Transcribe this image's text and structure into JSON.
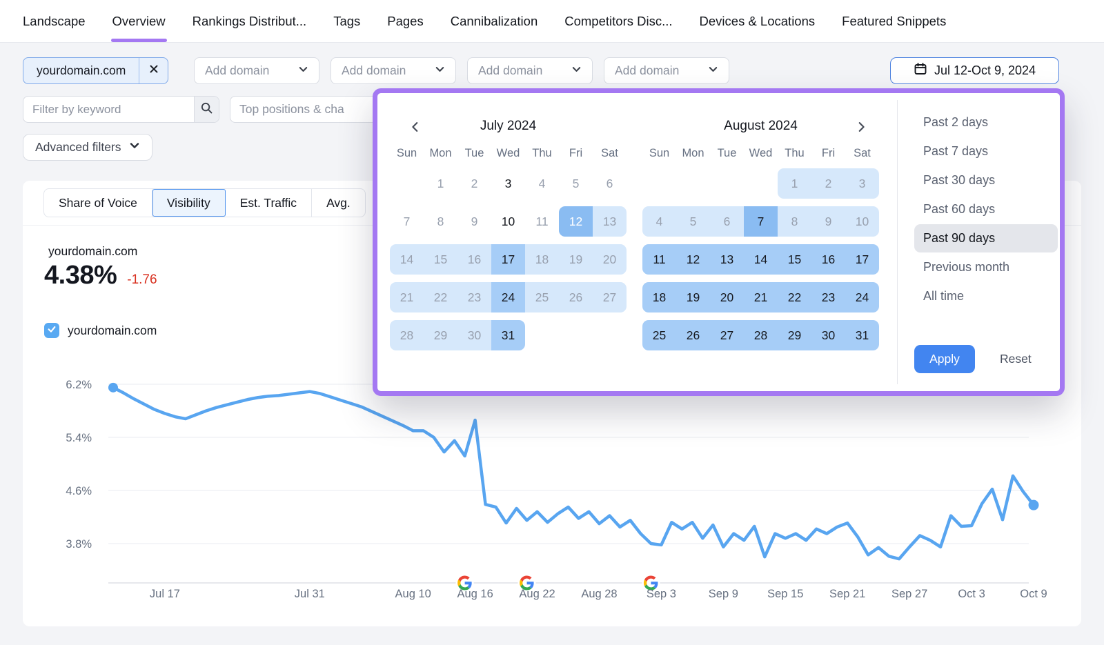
{
  "nav": {
    "items": [
      "Landscape",
      "Overview",
      "Rankings Distribut...",
      "Tags",
      "Pages",
      "Cannibalization",
      "Competitors Disc...",
      "Devices & Locations",
      "Featured Snippets"
    ],
    "active_item": "Overview"
  },
  "toolbar": {
    "domain_chip": {
      "label": "yourdomain.com"
    },
    "add_domain_label": "Add domain",
    "date_range_label": "Jul 12-Oct 9, 2024",
    "keyword_filter_placeholder": "Filter by keyword",
    "positions_filter_label": "Top positions & cha",
    "advanced_filters_label": "Advanced filters"
  },
  "metric_tabs": {
    "items": [
      "Share of Voice",
      "Visibility",
      "Est. Traffic",
      "Avg."
    ],
    "selected": "Visibility"
  },
  "summary": {
    "domain": "yourdomain.com",
    "visibility_value": "4.38%",
    "change": "-1.76",
    "change_direction": "down"
  },
  "legend": {
    "label": "yourdomain.com",
    "checked": true
  },
  "date_picker": {
    "months": [
      {
        "title": "July 2024",
        "weekdays": [
          "Sun",
          "Mon",
          "Tue",
          "Wed",
          "Thu",
          "Fri",
          "Sat"
        ],
        "weeks": [
          [
            null,
            {
              "d": 1,
              "bg": "none",
              "t": "gray"
            },
            {
              "d": 2,
              "bg": "none",
              "t": "gray"
            },
            {
              "d": 3,
              "bg": "none",
              "t": "dark"
            },
            {
              "d": 4,
              "bg": "none",
              "t": "gray"
            },
            {
              "d": 5,
              "bg": "none",
              "t": "gray"
            },
            {
              "d": 6,
              "bg": "none",
              "t": "gray"
            }
          ],
          [
            {
              "d": 7,
              "bg": "none",
              "t": "gray"
            },
            {
              "d": 8,
              "bg": "none",
              "t": "gray"
            },
            {
              "d": 9,
              "bg": "none",
              "t": "gray"
            },
            {
              "d": 10,
              "bg": "none",
              "t": "dark"
            },
            {
              "d": 11,
              "bg": "none",
              "t": "gray"
            },
            {
              "d": 12,
              "bg": "strong",
              "t": "white"
            },
            {
              "d": 13,
              "bg": "light",
              "t": "gray"
            }
          ],
          [
            {
              "d": 14,
              "bg": "light",
              "t": "gray"
            },
            {
              "d": 15,
              "bg": "light",
              "t": "gray"
            },
            {
              "d": 16,
              "bg": "light",
              "t": "gray"
            },
            {
              "d": 17,
              "bg": "mid",
              "t": "dark"
            },
            {
              "d": 18,
              "bg": "light",
              "t": "gray"
            },
            {
              "d": 19,
              "bg": "light",
              "t": "gray"
            },
            {
              "d": 20,
              "bg": "light",
              "t": "gray"
            }
          ],
          [
            {
              "d": 21,
              "bg": "light",
              "t": "gray"
            },
            {
              "d": 22,
              "bg": "light",
              "t": "gray"
            },
            {
              "d": 23,
              "bg": "light",
              "t": "gray"
            },
            {
              "d": 24,
              "bg": "mid",
              "t": "dark"
            },
            {
              "d": 25,
              "bg": "light",
              "t": "gray"
            },
            {
              "d": 26,
              "bg": "light",
              "t": "gray"
            },
            {
              "d": 27,
              "bg": "light",
              "t": "gray"
            }
          ],
          [
            {
              "d": 28,
              "bg": "light",
              "t": "gray"
            },
            {
              "d": 29,
              "bg": "light",
              "t": "gray"
            },
            {
              "d": 30,
              "bg": "light",
              "t": "gray"
            },
            {
              "d": 31,
              "bg": "mid",
              "t": "dark"
            },
            null,
            null,
            null
          ]
        ]
      },
      {
        "title": "August 2024",
        "weekdays": [
          "Sun",
          "Mon",
          "Tue",
          "Wed",
          "Thu",
          "Fri",
          "Sat"
        ],
        "weeks": [
          [
            null,
            null,
            null,
            null,
            {
              "d": 1,
              "bg": "light",
              "t": "gray"
            },
            {
              "d": 2,
              "bg": "light",
              "t": "gray"
            },
            {
              "d": 3,
              "bg": "light",
              "t": "gray"
            }
          ],
          [
            {
              "d": 4,
              "bg": "light",
              "t": "gray"
            },
            {
              "d": 5,
              "bg": "light",
              "t": "gray"
            },
            {
              "d": 6,
              "bg": "light",
              "t": "gray"
            },
            {
              "d": 7,
              "bg": "strong",
              "t": "dark"
            },
            {
              "d": 8,
              "bg": "light",
              "t": "gray"
            },
            {
              "d": 9,
              "bg": "light",
              "t": "gray"
            },
            {
              "d": 10,
              "bg": "light",
              "t": "gray"
            }
          ],
          [
            {
              "d": 11,
              "bg": "mid",
              "t": "dark"
            },
            {
              "d": 12,
              "bg": "mid",
              "t": "dark"
            },
            {
              "d": 13,
              "bg": "mid",
              "t": "dark"
            },
            {
              "d": 14,
              "bg": "mid",
              "t": "dark"
            },
            {
              "d": 15,
              "bg": "mid",
              "t": "dark"
            },
            {
              "d": 16,
              "bg": "mid",
              "t": "dark"
            },
            {
              "d": 17,
              "bg": "mid",
              "t": "dark"
            }
          ],
          [
            {
              "d": 18,
              "bg": "mid",
              "t": "dark"
            },
            {
              "d": 19,
              "bg": "mid",
              "t": "dark"
            },
            {
              "d": 20,
              "bg": "mid",
              "t": "dark"
            },
            {
              "d": 21,
              "bg": "mid",
              "t": "dark"
            },
            {
              "d": 22,
              "bg": "mid",
              "t": "dark"
            },
            {
              "d": 23,
              "bg": "mid",
              "t": "dark"
            },
            {
              "d": 24,
              "bg": "mid",
              "t": "dark"
            }
          ],
          [
            {
              "d": 25,
              "bg": "mid",
              "t": "dark"
            },
            {
              "d": 26,
              "bg": "mid",
              "t": "dark"
            },
            {
              "d": 27,
              "bg": "mid",
              "t": "dark"
            },
            {
              "d": 28,
              "bg": "mid",
              "t": "dark"
            },
            {
              "d": 29,
              "bg": "mid",
              "t": "dark"
            },
            {
              "d": 30,
              "bg": "mid",
              "t": "dark"
            },
            {
              "d": 31,
              "bg": "mid",
              "t": "dark"
            }
          ]
        ]
      }
    ],
    "presets": [
      "Past 2 days",
      "Past 7 days",
      "Past 30 days",
      "Past 60 days",
      "Past 90 days",
      "Previous month",
      "All time"
    ],
    "selected_preset": "Past 90 days",
    "apply_label": "Apply",
    "reset_label": "Reset"
  },
  "chart_data": {
    "type": "line",
    "title": "Visibility",
    "unit": "%",
    "grid": true,
    "ylim": [
      3.2,
      6.45
    ],
    "y_ticks": [
      "6.2%",
      "5.4%",
      "4.6%",
      "3.8%"
    ],
    "y_tick_values": [
      6.2,
      5.4,
      4.6,
      3.8
    ],
    "x_tick_labels": [
      "Jul 17",
      "Jul 31",
      "Aug 10",
      "Aug 16",
      "Aug 22",
      "Aug 28",
      "Sep 3",
      "Sep 9",
      "Sep 15",
      "Sep 21",
      "Sep 27",
      "Oct 3",
      "Oct 9"
    ],
    "x_tick_day_indices": [
      5,
      19,
      29,
      35,
      41,
      47,
      53,
      59,
      65,
      71,
      77,
      83,
      89
    ],
    "series": [
      {
        "name": "yourdomain.com",
        "color": "#58a5f0",
        "start_date": "Jul 12, 2024",
        "end_date": "Oct 9, 2024",
        "values": [
          6.15,
          6.07,
          5.98,
          5.9,
          5.82,
          5.76,
          5.71,
          5.68,
          5.74,
          5.8,
          5.85,
          5.89,
          5.93,
          5.97,
          6.0,
          6.02,
          6.03,
          6.05,
          6.07,
          6.09,
          6.06,
          6.01,
          5.96,
          5.91,
          5.86,
          5.79,
          5.72,
          5.65,
          5.58,
          5.5,
          5.5,
          5.4,
          5.18,
          5.35,
          5.12,
          5.66,
          4.39,
          4.35,
          4.11,
          4.33,
          4.15,
          4.28,
          4.12,
          4.25,
          4.35,
          4.18,
          4.28,
          4.1,
          4.22,
          4.05,
          4.15,
          3.95,
          3.8,
          3.78,
          4.12,
          4.02,
          4.12,
          3.88,
          4.08,
          3.75,
          3.95,
          3.85,
          4.06,
          3.6,
          3.95,
          3.88,
          3.95,
          3.85,
          4.02,
          3.95,
          4.05,
          4.11,
          3.9,
          3.63,
          3.74,
          3.61,
          3.57,
          3.75,
          3.92,
          3.85,
          3.75,
          4.22,
          4.06,
          4.07,
          4.4,
          4.62,
          4.16,
          4.82,
          4.58,
          4.38
        ]
      }
    ],
    "google_update_markers": {
      "day_indices": [
        34,
        40,
        52
      ],
      "approx_dates": [
        "Aug 15, 2024",
        "Aug 21, 2024",
        "Sep 2, 2024"
      ]
    }
  },
  "icons": {
    "remove_domain": "x-icon",
    "add_domain": "chevron-down-icon",
    "date_range": "calendar-icon",
    "keyword_search": "search-icon",
    "advanced_filters": "chevron-down-icon",
    "calendar_prev": "chevron-left-icon",
    "calendar_next": "chevron-right-icon",
    "google_update": "google-g-icon",
    "legend_checkbox": "checkmark-icon"
  },
  "colors": {
    "accent_purple": "#a478f2",
    "primary_blue": "#4285f0",
    "negative_red": "#d8301f",
    "chart_line": "#58a5f0",
    "range_light": "#d6e8fb",
    "range_mid": "#a6cdf7",
    "range_strong": "#8abcf2",
    "checkbox_blue": "#58a9f2",
    "preset_selected_bg": "#e4e6eb"
  }
}
